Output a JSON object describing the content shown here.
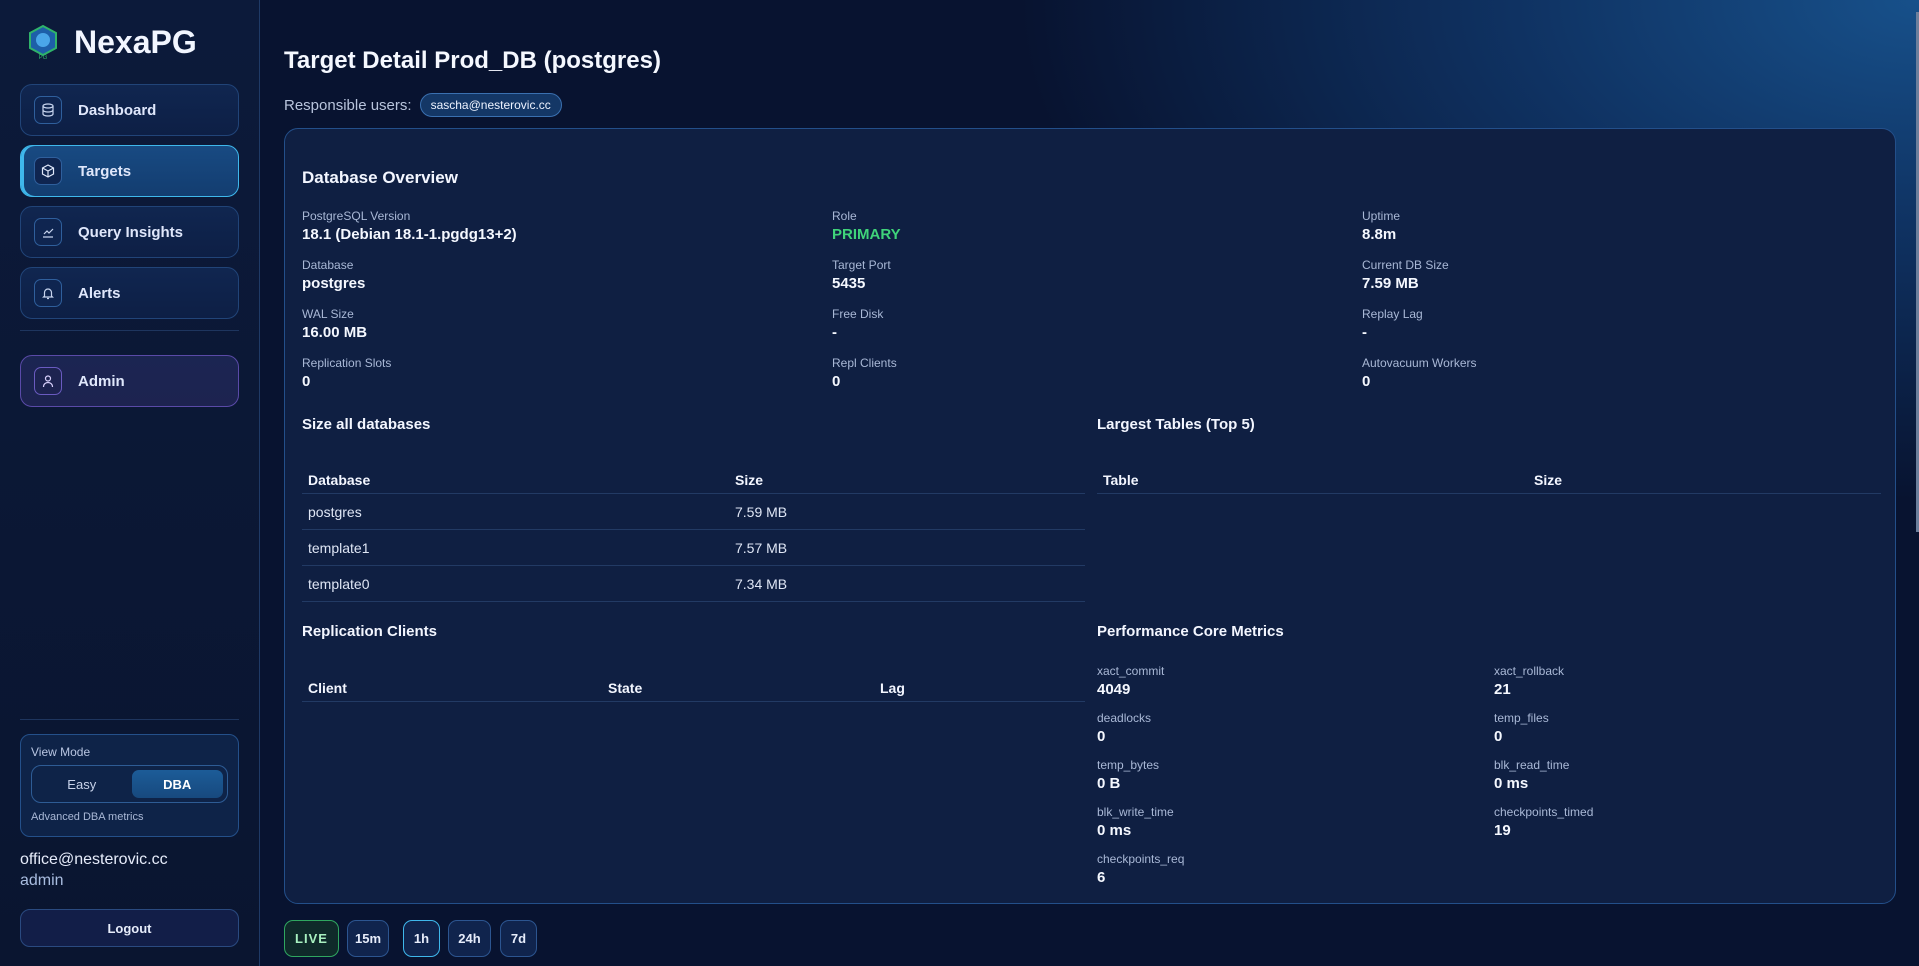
{
  "brand": {
    "name": "NexaPG",
    "logo_text": "NexaPG"
  },
  "sidebar": {
    "items": [
      {
        "label": "Dashboard",
        "icon": "database-icon"
      },
      {
        "label": "Targets",
        "icon": "cube-icon",
        "active": true
      },
      {
        "label": "Query Insights",
        "icon": "chart-line-icon"
      },
      {
        "label": "Alerts",
        "icon": "bell-icon"
      },
      {
        "label": "Admin",
        "icon": "user-icon"
      }
    ],
    "view_mode": {
      "label": "View Mode",
      "options": [
        "Easy",
        "DBA"
      ],
      "selected": "DBA",
      "hint": "Advanced DBA metrics"
    },
    "user": {
      "email": "office@nesterovic.cc",
      "role": "admin"
    },
    "logout": "Logout"
  },
  "header": {
    "title": "Target Detail Prod_DB (postgres)",
    "responsible_label": "Responsible users:",
    "responsible_users": [
      "sascha@nesterovic.cc"
    ]
  },
  "overview": {
    "title": "Database Overview",
    "items": [
      {
        "label": "PostgreSQL Version",
        "value": "18.1 (Debian 18.1-1.pgdg13+2)"
      },
      {
        "label": "Role",
        "value": "PRIMARY"
      },
      {
        "label": "Uptime",
        "value": "8.8m"
      },
      {
        "label": "Database",
        "value": "postgres"
      },
      {
        "label": "Target Port",
        "value": "5435"
      },
      {
        "label": "Current DB Size",
        "value": "7.59 MB"
      },
      {
        "label": "WAL Size",
        "value": "16.00 MB"
      },
      {
        "label": "Free Disk",
        "value": "-"
      },
      {
        "label": "Replay Lag",
        "value": "-"
      },
      {
        "label": "Replication Slots",
        "value": "0"
      },
      {
        "label": "Repl Clients",
        "value": "0"
      },
      {
        "label": "Autovacuum Workers",
        "value": "0"
      }
    ],
    "role_color": "#3fd37a"
  },
  "size_all": {
    "title": "Size all databases",
    "columns": [
      "Database",
      "Size"
    ],
    "rows": [
      [
        "postgres",
        "7.59 MB"
      ],
      [
        "template1",
        "7.57 MB"
      ],
      [
        "template0",
        "7.34 MB"
      ]
    ]
  },
  "largest_tables": {
    "title": "Largest Tables (Top 5)",
    "columns": [
      "Table",
      "Size"
    ]
  },
  "replication": {
    "title": "Replication Clients",
    "columns": [
      "Client",
      "State",
      "Lag"
    ]
  },
  "performance": {
    "title": "Performance Core Metrics",
    "items": [
      {
        "label": "xact_commit",
        "value": "4049"
      },
      {
        "label": "xact_rollback",
        "value": "21"
      },
      {
        "label": "deadlocks",
        "value": "0"
      },
      {
        "label": "temp_files",
        "value": "0"
      },
      {
        "label": "temp_bytes",
        "value": "0 B"
      },
      {
        "label": "blk_read_time",
        "value": "0 ms"
      },
      {
        "label": "blk_write_time",
        "value": "0 ms"
      },
      {
        "label": "checkpoints_timed",
        "value": "19"
      },
      {
        "label": "checkpoints_req",
        "value": "6"
      }
    ]
  },
  "time_range": {
    "options": [
      "LIVE",
      "15m",
      "1h",
      "24h",
      "7d"
    ],
    "selected": "1h"
  }
}
